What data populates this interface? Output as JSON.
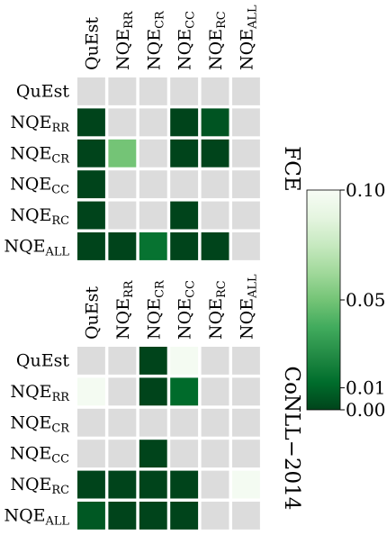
{
  "chart_data": [
    {
      "type": "heatmap",
      "side_label": "FCE",
      "columns": [
        {
          "base": "QuEst",
          "sub": ""
        },
        {
          "base": "NQE",
          "sub": "RR"
        },
        {
          "base": "NQE",
          "sub": "CR"
        },
        {
          "base": "NQE",
          "sub": "CC"
        },
        {
          "base": "NQE",
          "sub": "RC"
        },
        {
          "base": "NQE",
          "sub": "ALL"
        }
      ],
      "rows": [
        {
          "base": "QuEst",
          "sub": ""
        },
        {
          "base": "NQE",
          "sub": "RR"
        },
        {
          "base": "NQE",
          "sub": "CR"
        },
        {
          "base": "NQE",
          "sub": "CC"
        },
        {
          "base": "NQE",
          "sub": "RC"
        },
        {
          "base": "NQE",
          "sub": "ALL"
        }
      ],
      "values": [
        [
          null,
          null,
          null,
          null,
          null,
          null
        ],
        [
          0.0,
          null,
          null,
          0.0,
          0.005,
          null
        ],
        [
          0.0,
          0.05,
          null,
          0.0,
          0.0,
          null
        ],
        [
          0.0,
          null,
          null,
          null,
          null,
          null
        ],
        [
          0.0,
          null,
          null,
          0.0,
          null,
          null
        ],
        [
          0.0,
          0.0,
          0.015,
          0.0,
          0.0,
          null
        ]
      ]
    },
    {
      "type": "heatmap",
      "side_label": "CoNLL−2014",
      "columns": [
        {
          "base": "QuEst",
          "sub": ""
        },
        {
          "base": "NQE",
          "sub": "RR"
        },
        {
          "base": "NQE",
          "sub": "CR"
        },
        {
          "base": "NQE",
          "sub": "CC"
        },
        {
          "base": "NQE",
          "sub": "RC"
        },
        {
          "base": "NQE",
          "sub": "ALL"
        }
      ],
      "rows": [
        {
          "base": "QuEst",
          "sub": ""
        },
        {
          "base": "NQE",
          "sub": "RR"
        },
        {
          "base": "NQE",
          "sub": "CR"
        },
        {
          "base": "NQE",
          "sub": "CC"
        },
        {
          "base": "NQE",
          "sub": "RC"
        },
        {
          "base": "NQE",
          "sub": "ALL"
        }
      ],
      "values": [
        [
          null,
          null,
          0.0,
          0.098,
          null,
          null
        ],
        [
          0.098,
          null,
          0.0,
          0.012,
          null,
          null
        ],
        [
          null,
          null,
          null,
          null,
          null,
          null
        ],
        [
          null,
          null,
          0.0,
          null,
          null,
          null
        ],
        [
          0.0,
          0.0,
          0.0,
          0.0,
          null,
          0.098
        ],
        [
          0.006,
          0.0,
          0.0,
          0.0,
          null,
          null
        ]
      ]
    }
  ],
  "colorbar": {
    "min": 0.0,
    "max": 0.1,
    "ticks": [
      {
        "value": 0.1,
        "label": "0.10"
      },
      {
        "value": 0.05,
        "label": "0.05"
      },
      {
        "value": 0.01,
        "label": "0.01"
      },
      {
        "value": 0.0,
        "label": "0.00"
      }
    ],
    "colors": [
      "#00441b",
      "#006d2c",
      "#238b45",
      "#41ab5d",
      "#74c476",
      "#a1d99b",
      "#c7e9c0",
      "#e5f5e0",
      "#f7fcf5"
    ]
  },
  "missing_color": "#dcdcdc"
}
